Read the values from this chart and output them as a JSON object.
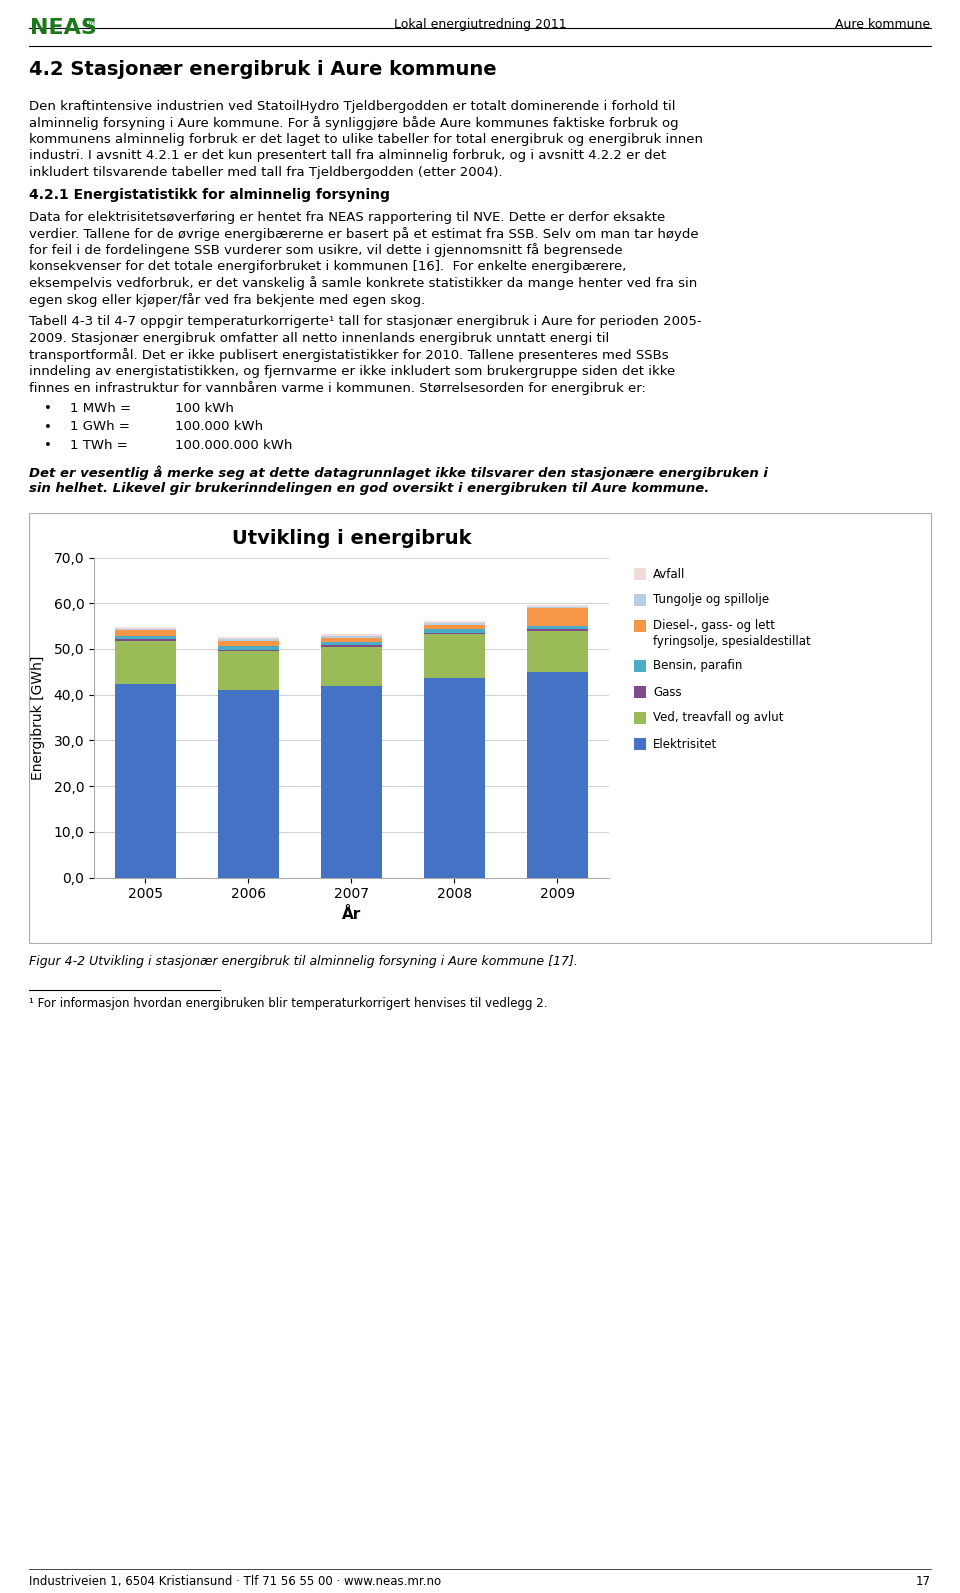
{
  "title": "Utvikling i energibruk",
  "xlabel": "År",
  "ylabel": "Energibruk [GWh]",
  "years": [
    2005,
    2006,
    2007,
    2008,
    2009
  ],
  "series": {
    "Elektrisitet": [
      42.3,
      41.0,
      42.0,
      43.7,
      45.0
    ],
    "Ved, treavfall og avlut": [
      9.5,
      8.5,
      8.5,
      9.5,
      9.0
    ],
    "Gass": [
      0.3,
      0.3,
      0.3,
      0.3,
      0.3
    ],
    "Bensin, parafin": [
      0.8,
      0.8,
      0.7,
      0.8,
      0.8
    ],
    "Diesel-, gass- og lett fyringsolje, spesialdestillat": [
      1.2,
      1.2,
      1.0,
      1.0,
      3.8
    ],
    "Tungolje og spillolje": [
      0.3,
      0.3,
      0.3,
      0.3,
      0.3
    ],
    "Avfall": [
      0.5,
      0.5,
      0.5,
      0.5,
      0.5
    ]
  },
  "colors": {
    "Elektrisitet": "#4472C4",
    "Ved, treavfall og avlut": "#9BBB59",
    "Gass": "#7F4A8A",
    "Bensin, parafin": "#4BACC6",
    "Diesel-, gass- og lett fyringsolje, spesialdestillat": "#F79646",
    "Tungolje og spillolje": "#B8CCE4",
    "Avfall": "#F2DCDB"
  },
  "legend_order": [
    "Avfall",
    "Tungolje og spillolje",
    "Diesel-, gass- og lett fyringsolje, spesialdestillat",
    "Bensin, parafin",
    "Gass",
    "Ved, treavfall og avlut",
    "Elektrisitet"
  ],
  "legend_display": {
    "Avfall": "Avfall",
    "Tungolje og spillolje": "Tungolje og spillolje",
    "Diesel-, gass- og lett fyringsolje, spesialdestillat": "Diesel-, gass- og lett\nfyringsolje, spesialdestillat",
    "Bensin, parafin": "Bensin, parafin",
    "Gass": "Gass",
    "Ved, treavfall og avlut": "Ved, treavfall og avlut",
    "Elektrisitet": "Elektrisitet"
  },
  "ylim": [
    0,
    70
  ],
  "yticks": [
    0,
    10,
    20,
    30,
    40,
    50,
    60,
    70
  ],
  "ytick_labels": [
    "0,0",
    "10,0",
    "20,0",
    "30,0",
    "40,0",
    "50,0",
    "60,0",
    "70,0"
  ],
  "bar_width": 0.6,
  "figure_bg": "#ffffff",
  "header_text": "Lokal energiutredning 2011",
  "header_right": "Aure kommune",
  "section_title": "4.2 Stasjonær energibruk i Aure kommune",
  "body_text1_lines": [
    "Den kraftintensive industrien ved StatoilHydro Tjeldbergodden er totalt dominerende i forhold til",
    "alminnelig forsyning i Aure kommune. For å synliggjøre både Aure kommunes faktiske forbruk og",
    "kommunens alminnelig forbruk er det laget to ulike tabeller for total energibruk og energibruk innen",
    "industri. I avsnitt 4.2.1 er det kun presentert tall fra alminnelig forbruk, og i avsnitt 4.2.2 er det",
    "inkludert tilsvarende tabeller med tall fra Tjeldbergodden (etter 2004)."
  ],
  "subsection_title": "4.2.1 Energistatistikk for alminnelig forsyning",
  "body_text2_lines": [
    "Data for elektrisitetsøverføring er hentet fra NEAS rapportering til NVE. Dette er derfor eksakte",
    "verdier. Tallene for de øvrige energibærerne er basert på et estimat fra SSB. Selv om man tar høyde",
    "for feil i de fordelingene SSB vurderer som usikre, vil dette i gjennomsnitt få begrensede",
    "konsekvenser for det totale energiforbruket i kommunen [16].  For enkelte energibærere,",
    "eksempelvis vedforbruk, er det vanskelig å samle konkrete statistikker da mange henter ved fra sin",
    "egen skog eller kjøper/får ved fra bekjente med egen skog."
  ],
  "body_text3_lines": [
    "Tabell 4-3 til 4-7 oppgir temperaturkorrigerte¹ tall for stasjonær energibruk i Aure for perioden 2005-",
    "2009. Stasjonær energibruk omfatter all netto innenlands energibruk unntatt energi til",
    "transportformål. Det er ikke publisert energistatistikker for 2010. Tallene presenteres med SSBs",
    "inndeling av energistatistikken, og fjernvarme er ikke inkludert som brukergruppe siden det ikke",
    "finnes en infrastruktur for vannbåren varme i kommunen. Størrelsesorden for energibruk er:"
  ],
  "bullets": [
    [
      "1 MWh =",
      "100 kWh"
    ],
    [
      "1 GWh =",
      "100.000 kWh"
    ],
    [
      "1 TWh =",
      "100.000.000 kWh"
    ]
  ],
  "italic_lines": [
    "Det er vesentlig å merke seg at dette datagrunnlaget ikke tilsvarer den stasjonære energibruken i",
    "sin helhet. Likevel gir brukerinndelingen en god oversikt i energibruken til Aure kommune."
  ],
  "figure_caption": "Figur 4-2 Utvikling i stasjonær energibruk til alminnelig forsyning i Aure kommune [17].",
  "footnote": "¹ For informasjon hvordan energibruken blir temperaturkorrigert henvises til vedlegg 2.",
  "footer_text": "Industriveien 1, 6504 Kristiansund · Tlf 71 56 55 00 · www.neas.mr.no",
  "footer_page": "17"
}
